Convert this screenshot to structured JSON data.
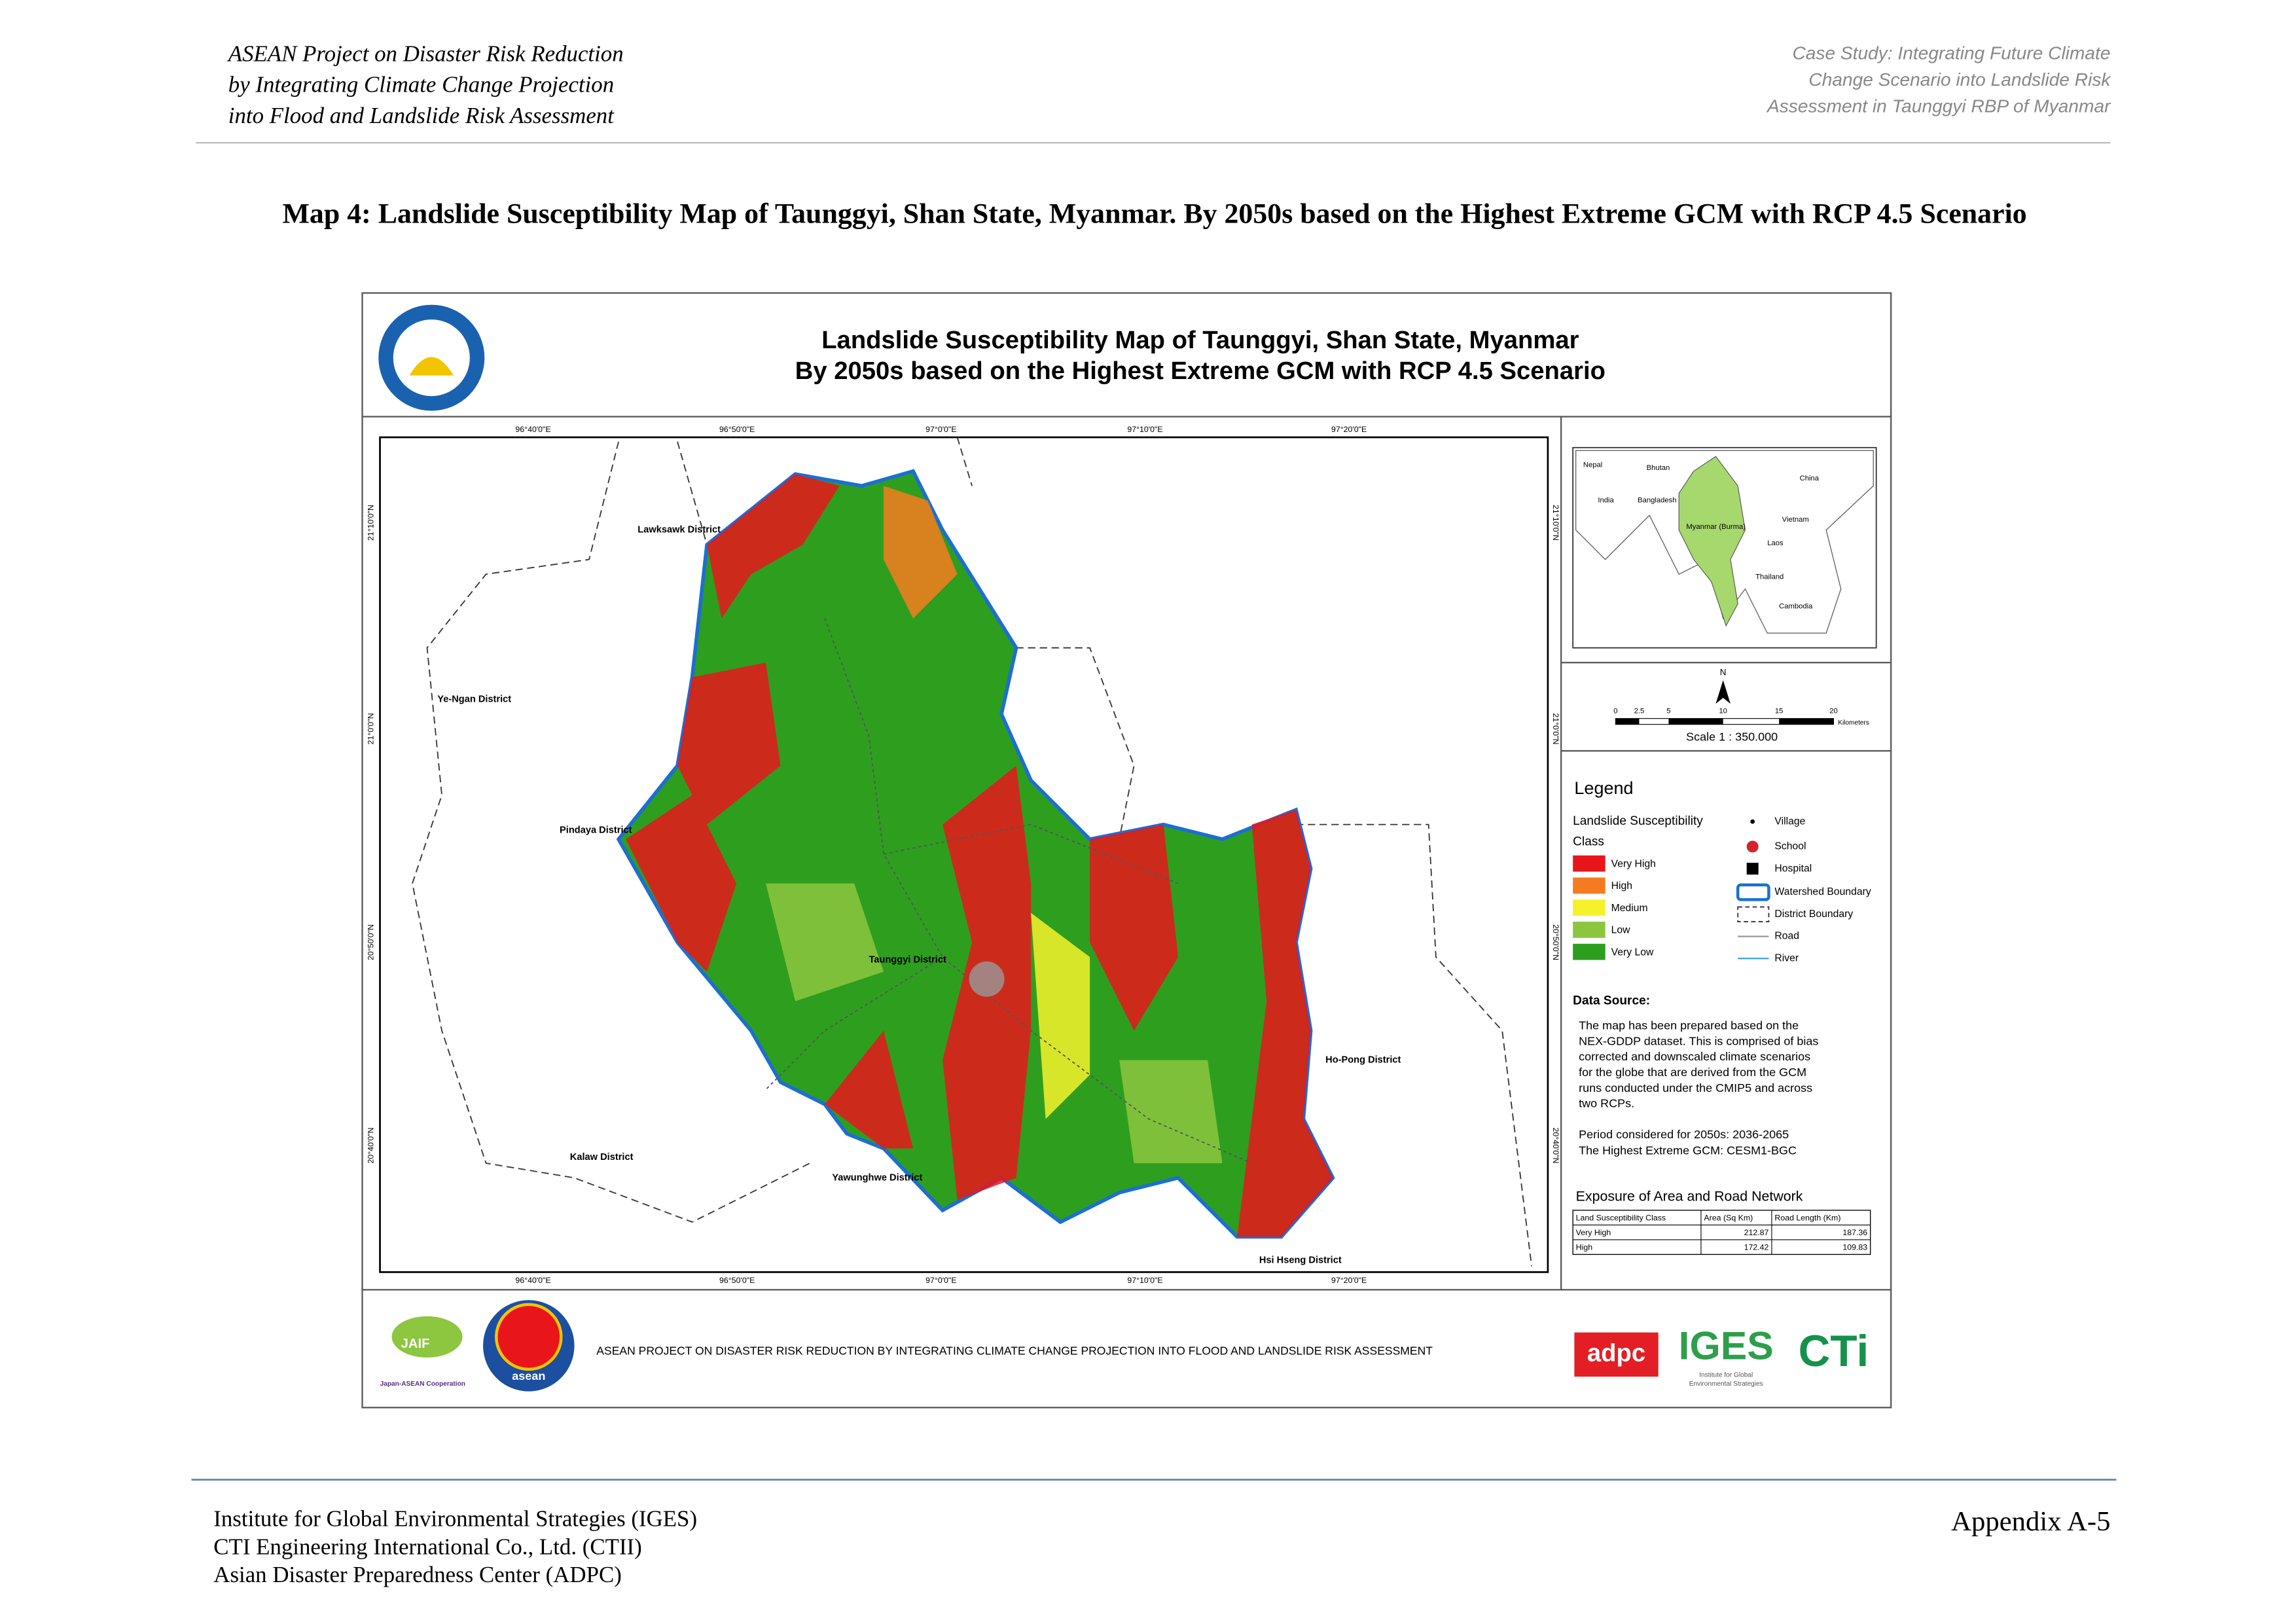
{
  "header": {
    "left": [
      "ASEAN Project on Disaster Risk Reduction",
      "by Integrating Climate Change Projection",
      "into Flood and Landslide Risk Assessment"
    ],
    "right": [
      "Case Study: Integrating Future Climate",
      "Change Scenario into Landslide Risk",
      "Assessment in Taunggyi RBP of Myanmar"
    ]
  },
  "caption": "Map 4: Landslide Susceptibility Map of Taunggyi, Shan State, Myanmar. By 2050s based on the Highest Extreme GCM with RCP 4.5 Scenario",
  "map": {
    "title": [
      "Landslide Susceptibility Map of Taunggyi, Shan State, Myanmar",
      "By 2050s based on the Highest Extreme GCM with RCP 4.5 Scenario"
    ],
    "lon_labels": [
      "96°40'0\"E",
      "96°50'0\"E",
      "97°0'0\"E",
      "97°10'0\"E",
      "97°20'0\"E"
    ],
    "lat_labels": [
      "21°10'0\"N",
      "21°0'0\"N",
      "20°50'0\"N",
      "20°40'0\"N"
    ],
    "districts": [
      "Lawksawk District",
      "Ye-Ngan District",
      "Pindaya District",
      "Taunggyi District",
      "Kalaw District",
      "Yawunghwe District",
      "Ho-Pong District",
      "Hsi Hseng District"
    ],
    "inset": [
      "Nepal",
      "Bhutan",
      "China",
      "India",
      "Bangladesh",
      "Myanmar (Burma)",
      "Vietnam",
      "Laos",
      "Thailand",
      "Cambodia"
    ],
    "scale": {
      "north": "N",
      "ticks": [
        "0",
        "2.5",
        "5",
        "10",
        "15",
        "20"
      ],
      "unit": "Kilometers",
      "text": "Scale 1 : 350.000"
    },
    "legend": {
      "title": "Legend",
      "class_title": [
        "Landslide Susceptibility",
        "Class"
      ],
      "classes": [
        {
          "label": "Very High",
          "color": "#e8161b"
        },
        {
          "label": "High",
          "color": "#f47b20"
        },
        {
          "label": "Medium",
          "color": "#f5f22a"
        },
        {
          "label": "Low",
          "color": "#8cc63f"
        },
        {
          "label": "Very Low",
          "color": "#2e9e1f"
        }
      ],
      "symbols": [
        "Village",
        "School",
        "Hospital",
        "Watershed Boundary",
        "District Boundary",
        "Road",
        "River"
      ]
    },
    "data_source": {
      "title": "Data Source:",
      "text": [
        "The map has been prepared based on the",
        "NEX-GDDP dataset. This is comprised of bias",
        "corrected and downscaled climate scenarios",
        "for the globe that are derived from the GCM",
        "runs conducted under the CMIP5 and across",
        "two RCPs."
      ],
      "period": "Period considered for 2050s: 2036-2065",
      "gcm": "The Highest Extreme GCM: CESM1-BGC"
    },
    "exposure": {
      "title": "Exposure of Area and Road Network",
      "columns": [
        "Land Susceptibility Class",
        "Area (Sq Km)",
        "Road Length (Km)"
      ],
      "rows": [
        [
          "Very High",
          "212.87",
          "187.36"
        ],
        [
          "High",
          "172.42",
          "109.83"
        ]
      ]
    },
    "banner": {
      "text": "ASEAN PROJECT ON DISASTER RISK REDUCTION BY INTEGRATING CLIMATE CHANGE PROJECTION INTO FLOOD AND LANDSLIDE RISK ASSESSMENT",
      "jaif": "JAIF",
      "jaif_sub": "Japan-ASEAN Cooperation",
      "asean": "asean",
      "adpc": "adpc",
      "iges": "IGES",
      "iges_sub": [
        "Institute for Global",
        "Environmental Strategies"
      ],
      "cti": "CTi"
    }
  },
  "footer": {
    "left": [
      "Institute for Global Environmental Strategies (IGES)",
      "CTI Engineering International Co., Ltd. (CTII)",
      "Asian Disaster Preparedness Center (ADPC)"
    ],
    "right": "Appendix A-5"
  }
}
